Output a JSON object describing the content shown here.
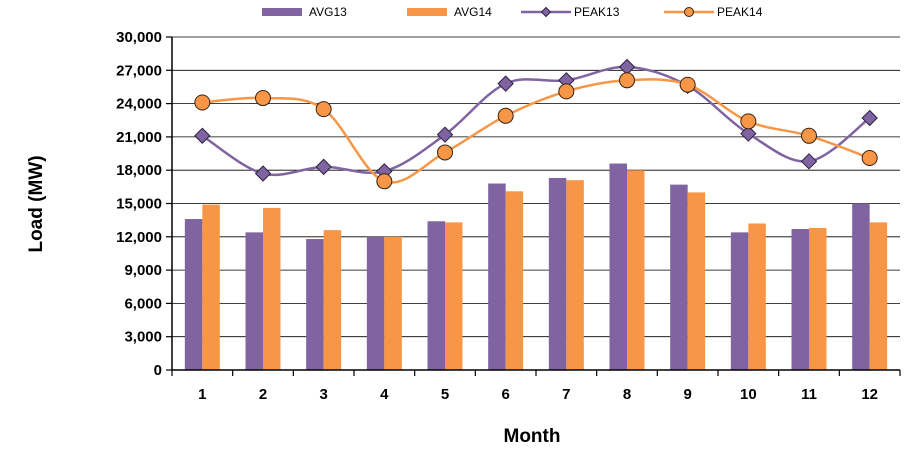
{
  "chart_data": {
    "type": "bar",
    "categories": [
      "1",
      "2",
      "3",
      "4",
      "5",
      "6",
      "7",
      "8",
      "9",
      "10",
      "11",
      "12"
    ],
    "xlabel": "Month",
    "ylabel": "Load (MW)",
    "ylim": [
      0,
      30000
    ],
    "y_ticks": [
      "0",
      "3,000",
      "6,000",
      "9,000",
      "12,000",
      "15,000",
      "18,000",
      "21,000",
      "24,000",
      "27,000",
      "30,000"
    ],
    "grid": true,
    "legend_position": "top",
    "series": [
      {
        "name": "AVG13",
        "kind": "bar",
        "color": "#8064A2",
        "values": [
          13600,
          12400,
          11800,
          12000,
          13400,
          16800,
          17300,
          18600,
          16700,
          12400,
          12700,
          15000
        ]
      },
      {
        "name": "AVG14",
        "kind": "bar",
        "color": "#F79646",
        "values": [
          14900,
          14600,
          12600,
          12000,
          13300,
          16100,
          17100,
          18000,
          16000,
          13200,
          12800,
          13300
        ]
      },
      {
        "name": "PEAK13",
        "kind": "line",
        "marker": "diamond",
        "color": "#8064A2",
        "values": [
          21100,
          17700,
          18300,
          17900,
          21200,
          25800,
          26100,
          27300,
          25600,
          21300,
          18800,
          22700
        ]
      },
      {
        "name": "PEAK14",
        "kind": "line",
        "marker": "circle",
        "color": "#F79646",
        "values": [
          24100,
          24500,
          23500,
          17000,
          19600,
          22900,
          25100,
          26100,
          25700,
          22400,
          21100,
          19100
        ]
      }
    ]
  }
}
